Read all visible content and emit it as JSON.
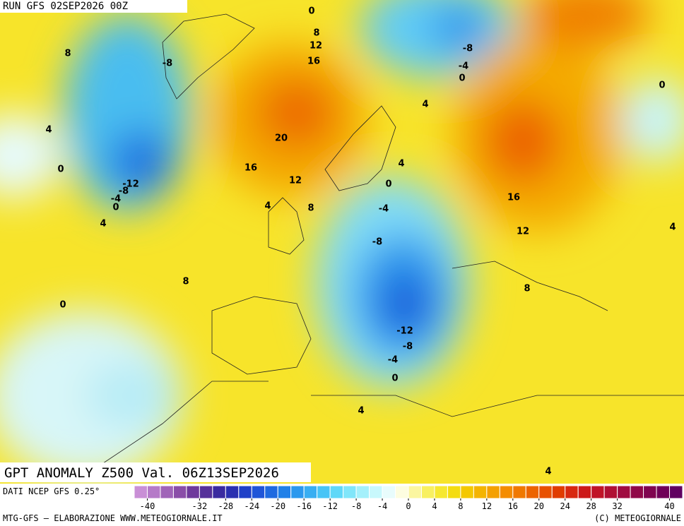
{
  "header": {
    "run": "RUN GFS 02SEP2026 00Z",
    "title": "GPT ANOMALY Z500 Val. 06Z13SEP2026"
  },
  "footer": {
    "source": "DATI NCEP GFS 0.25°",
    "credit": "MTG-GFS — ELABORAZIONE WWW.METEOGIORNALE.IT",
    "copyright": "(C) METEOGIORNALE"
  },
  "contour_labels": [
    0,
    8,
    12,
    16,
    8,
    -8,
    -8,
    -4,
    0,
    4,
    0,
    4,
    20,
    0,
    16,
    -12,
    -8,
    -4,
    0,
    12,
    4,
    0,
    4,
    8,
    -4,
    16,
    4,
    -8,
    12,
    4,
    8,
    8,
    0,
    -12,
    -8,
    -4,
    0,
    4,
    4
  ],
  "colorbar": {
    "ticks": [
      -40,
      -32,
      -28,
      -24,
      -20,
      -16,
      -12,
      -8,
      -4,
      0,
      4,
      8,
      12,
      16,
      20,
      24,
      28,
      32,
      40
    ],
    "range": [
      -42,
      42
    ],
    "colors": [
      "#c98fd6",
      "#b57ac8",
      "#a064b8",
      "#8a4ea8",
      "#6f3a9c",
      "#55309a",
      "#3a2ba0",
      "#2a30b0",
      "#1f40c8",
      "#1f55d8",
      "#1f6ae0",
      "#2080e8",
      "#2a98ee",
      "#38aef2",
      "#48c4f6",
      "#60d8f8",
      "#80e6fa",
      "#a4f0fb",
      "#c8f8fc",
      "#e8fcfc",
      "#fdfde0",
      "#fbf6a0",
      "#f8f060",
      "#f6e830",
      "#f4dc10",
      "#f4c800",
      "#f4b400",
      "#f4a000",
      "#f48c00",
      "#f07800",
      "#ec6400",
      "#e85000",
      "#e03c00",
      "#d82810",
      "#cc1a1a",
      "#c01428",
      "#b01034",
      "#a00c40",
      "#900848",
      "#800550",
      "#700058",
      "#600060"
    ]
  }
}
